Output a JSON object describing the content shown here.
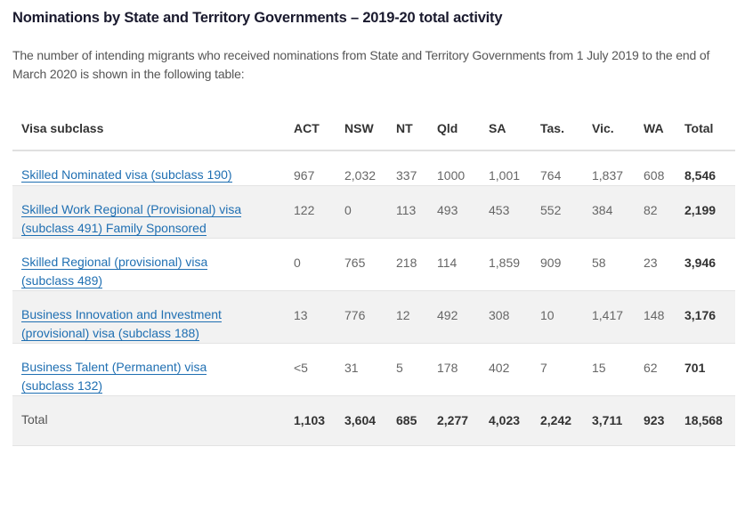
{
  "title": "Nominations by State and Territory Governments – 2019-20 total activity",
  "intro": "The number of intending migrants who received nominations from State and Territory Governments from 1 July 2019 to the end of March 2020 is shown in the following table:",
  "table": {
    "headers": [
      "Visa subclass",
      "ACT",
      "NSW",
      "NT",
      "Qld",
      "SA",
      "Tas.",
      "Vic.",
      "WA",
      "Total"
    ],
    "rows": [
      {
        "visa_line1": "Skilled Nominated visa (subclass 190)",
        "visa_line2": "",
        "values": [
          "967",
          "2,032",
          "337",
          "1000",
          "1,001",
          "764",
          "1,837",
          "608",
          "8,546"
        ]
      },
      {
        "visa_line1": "Skilled Work Regional (Provisional) visa",
        "visa_line2": "(subclass 491) Family Sponsored",
        "values": [
          "122",
          "0",
          "113",
          "493",
          "453",
          "552",
          "384",
          "82",
          "2,199"
        ]
      },
      {
        "visa_line1": "Skilled Regional (provisional) visa",
        "visa_line2": "(subclass 489)",
        "values": [
          "0",
          "765",
          "218",
          "114",
          "1,859",
          "909",
          "58",
          "23",
          "3,946"
        ]
      },
      {
        "visa_line1": "Business Innovation and Investment",
        "visa_line2": "(provisional) visa (subclass 188)",
        "values": [
          "13",
          "776",
          "12",
          "492",
          "308",
          "10",
          "1,417",
          "148",
          "3,176"
        ]
      },
      {
        "visa_line1": "Business Talent (Permanent) visa",
        "visa_line2": "(subclass 132)",
        "values": [
          "<5",
          "31",
          "5",
          "178",
          "402",
          "7",
          "15",
          "62",
          "701"
        ]
      }
    ],
    "total": {
      "label": "Total",
      "values": [
        "1,103",
        "3,604",
        "685",
        "2,277",
        "4,023",
        "2,242",
        "3,711",
        "923",
        "18,568"
      ]
    }
  }
}
